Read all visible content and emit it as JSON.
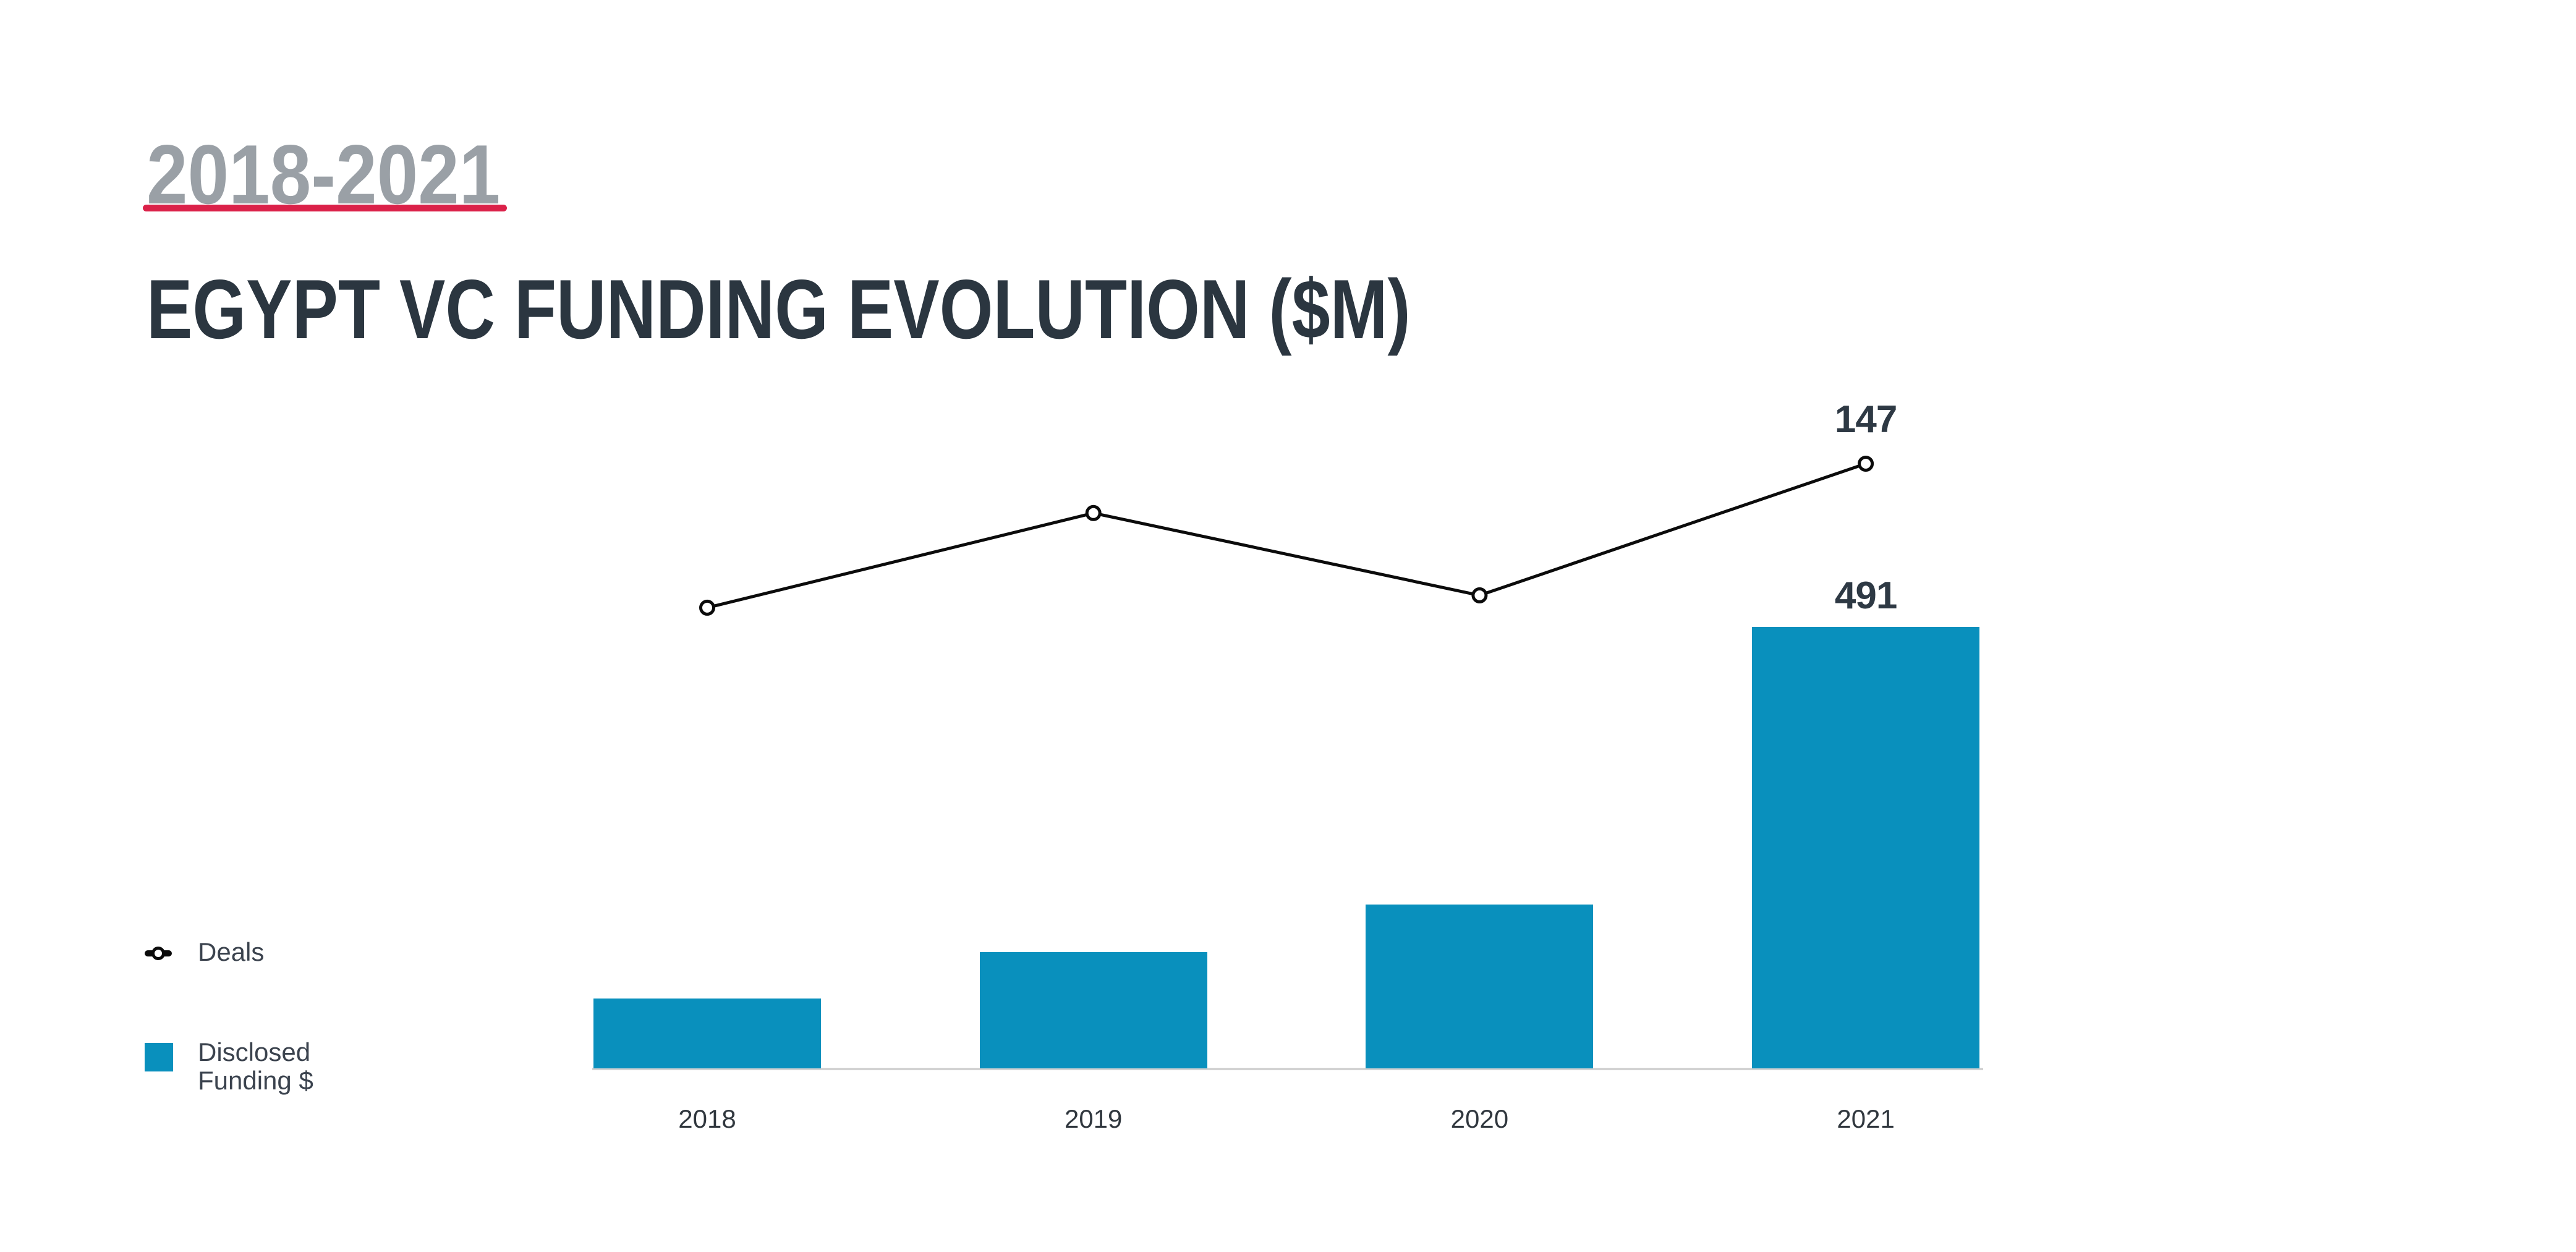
{
  "slide": {
    "period_label": "2018-2021",
    "title": "EGYPT VC FUNDING EVOLUTION ($M)"
  },
  "legend": {
    "deals_label": "Deals",
    "funding_label_lines": [
      "Disclosed",
      "Funding $"
    ],
    "deals_marker": "black-line-with-open-circle",
    "funding_swatch_color": "#0990BD"
  },
  "colors": {
    "background": "#FFFFFF",
    "bar": "#0990BD",
    "line": "#0B0B0B",
    "underline_red": "#DB2149",
    "period_gray": "#9AA0A6",
    "title_dark": "#2B3640",
    "data_label_dark": "#2E3944",
    "axis_gray": "#D2D2D2",
    "year_label": "#30373E",
    "legend_text": "#3B434E"
  },
  "chart_data": {
    "type": "bar",
    "categories": [
      "2018",
      "2019",
      "2020",
      "2021"
    ],
    "series": [
      {
        "name": "Disclosed Funding $",
        "type": "bar",
        "color": "#0990BD",
        "values": [
          78,
          129,
          182,
          491
        ],
        "data_labels": [
          "",
          "",
          "",
          "491"
        ]
      },
      {
        "name": "Deals",
        "type": "line",
        "color": "#0B0B0B",
        "marker": "open-circle",
        "values": [
          112,
          135,
          115,
          147
        ],
        "data_labels": [
          "",
          "",
          "",
          "147"
        ]
      }
    ],
    "title": "EGYPT VC FUNDING EVOLUTION ($M)",
    "xlabel": "",
    "ylabel": "",
    "y_axis_visible": false,
    "gridlines": false,
    "legend_position": "bottom-left",
    "bar_ylim": [
      0,
      491
    ],
    "line_ylim": [
      0,
      147
    ]
  }
}
